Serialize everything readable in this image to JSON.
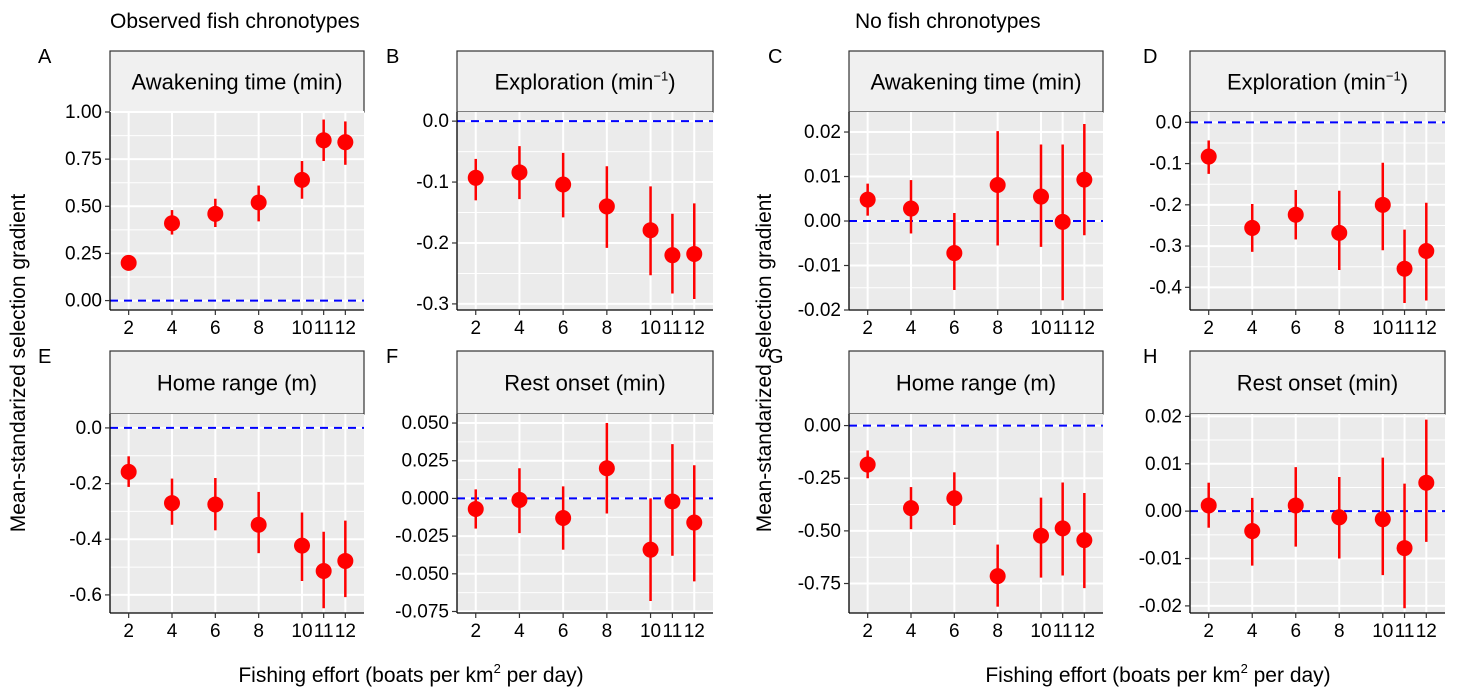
{
  "group_titles": [
    "Observed fish chronotypes",
    "No fish chronotypes"
  ],
  "ylabel": "Mean-standarized selection gradient",
  "xlabel": {
    "main": "Fishing effort (boats per km",
    "sup": "2",
    "tail": " per day)"
  },
  "colors": {
    "point": "#ff0000",
    "refline": "#0000ff",
    "panel_bg": "#ebebeb",
    "strip_bg": "#f0f0f0"
  },
  "chart_data": [
    {
      "type": "scatter",
      "panel": "A",
      "title": "Awakening time (min)",
      "xticks": [
        "2",
        "4",
        "6",
        "8",
        "10",
        "11",
        "12"
      ],
      "x": [
        2,
        4,
        6,
        8,
        10,
        11,
        12
      ],
      "y": [
        0.2,
        0.41,
        0.46,
        0.52,
        0.64,
        0.85,
        0.84
      ],
      "lo": [
        0.18,
        0.35,
        0.39,
        0.42,
        0.54,
        0.74,
        0.72
      ],
      "hi": [
        0.22,
        0.48,
        0.54,
        0.61,
        0.74,
        0.96,
        0.95
      ],
      "ylim": [
        -0.05,
        1.0
      ],
      "yticks": [
        0,
        0.25,
        0.5,
        0.75,
        1.0
      ],
      "yticklabels": [
        "0.00",
        "0.25",
        "0.50",
        "0.75",
        "1.00"
      ],
      "refline": 0
    },
    {
      "type": "scatter",
      "panel": "B",
      "title": "Exploration (min",
      "title_sup": "−1",
      "title_tail": ")",
      "xticks": [
        "2",
        "4",
        "6",
        "8",
        "10",
        "11",
        "12"
      ],
      "x": [
        2,
        4,
        6,
        8,
        10,
        11,
        12
      ],
      "y": [
        -0.093,
        -0.084,
        -0.104,
        -0.14,
        -0.179,
        -0.22,
        -0.218
      ],
      "lo": [
        -0.13,
        -0.128,
        -0.158,
        -0.208,
        -0.253,
        -0.283,
        -0.292
      ],
      "hi": [
        -0.062,
        -0.041,
        -0.052,
        -0.074,
        -0.107,
        -0.152,
        -0.135
      ],
      "ylim": [
        -0.31,
        0.015
      ],
      "yticks": [
        -0.3,
        -0.2,
        -0.1,
        0.0
      ],
      "yticklabels": [
        "-0.3",
        "-0.2",
        "-0.1",
        "0.0"
      ],
      "refline": 0
    },
    {
      "type": "scatter",
      "panel": "C",
      "title": "Awakening time (min)",
      "xticks": [
        "2",
        "4",
        "6",
        "8",
        "10",
        "11",
        "12"
      ],
      "x": [
        2,
        4,
        6,
        8,
        10,
        11,
        12
      ],
      "y": [
        0.0048,
        0.0028,
        -0.0072,
        0.0081,
        0.0055,
        -0.0002,
        0.0093
      ],
      "lo": [
        0.0012,
        -0.0028,
        -0.0155,
        -0.0055,
        -0.0058,
        -0.0178,
        -0.0032
      ],
      "hi": [
        0.0084,
        0.0092,
        0.0018,
        0.0202,
        0.0172,
        0.0172,
        0.0218
      ],
      "ylim": [
        -0.02,
        0.0245
      ],
      "yticks": [
        -0.02,
        -0.01,
        0.0,
        0.01,
        0.02
      ],
      "yticklabels": [
        "-0.02",
        "-0.01",
        "0.00",
        "0.01",
        "0.02"
      ],
      "refline": 0
    },
    {
      "type": "scatter",
      "panel": "D",
      "title": "Exploration (min",
      "title_sup": "−1",
      "title_tail": ")",
      "xticks": [
        "2",
        "4",
        "6",
        "8",
        "10",
        "11",
        "12"
      ],
      "x": [
        2,
        4,
        6,
        8,
        10,
        11,
        12
      ],
      "y": [
        -0.083,
        -0.256,
        -0.224,
        -0.268,
        -0.2,
        -0.355,
        -0.312
      ],
      "lo": [
        -0.125,
        -0.314,
        -0.284,
        -0.358,
        -0.31,
        -0.438,
        -0.432
      ],
      "hi": [
        -0.044,
        -0.198,
        -0.164,
        -0.166,
        -0.098,
        -0.26,
        -0.195
      ],
      "ylim": [
        -0.455,
        0.025
      ],
      "yticks": [
        -0.4,
        -0.3,
        -0.2,
        -0.1,
        0.0
      ],
      "yticklabels": [
        "-0.4",
        "-0.3",
        "-0.2",
        "-0.1",
        "0.0"
      ],
      "refline": 0
    },
    {
      "type": "scatter",
      "panel": "E",
      "title": "Home range (m)",
      "xticks": [
        "2",
        "4",
        "6",
        "8",
        "10",
        "11",
        "12"
      ],
      "x": [
        2,
        4,
        6,
        8,
        10,
        11,
        12
      ],
      "y": [
        -0.158,
        -0.27,
        -0.275,
        -0.348,
        -0.423,
        -0.514,
        -0.478
      ],
      "lo": [
        -0.212,
        -0.348,
        -0.368,
        -0.45,
        -0.55,
        -0.648,
        -0.608
      ],
      "hi": [
        -0.102,
        -0.182,
        -0.18,
        -0.23,
        -0.304,
        -0.373,
        -0.333
      ],
      "ylim": [
        -0.665,
        0.05
      ],
      "yticks": [
        -0.6,
        -0.4,
        -0.2,
        0.0
      ],
      "yticklabels": [
        "-0.6",
        "-0.4",
        "-0.2",
        "0.0"
      ],
      "refline": 0
    },
    {
      "type": "scatter",
      "panel": "F",
      "title": "Rest onset (min)",
      "xticks": [
        "2",
        "4",
        "6",
        "8",
        "10",
        "11",
        "12"
      ],
      "x": [
        2,
        4,
        6,
        8,
        10,
        11,
        12
      ],
      "y": [
        -0.007,
        -0.001,
        -0.013,
        0.02,
        -0.034,
        -0.002,
        -0.016
      ],
      "lo": [
        -0.02,
        -0.023,
        -0.034,
        -0.01,
        -0.068,
        -0.038,
        -0.055
      ],
      "hi": [
        0.006,
        0.02,
        0.008,
        0.05,
        0.0,
        0.036,
        0.022
      ],
      "ylim": [
        -0.076,
        0.056
      ],
      "yticks": [
        -0.075,
        -0.05,
        -0.025,
        0.0,
        0.025,
        0.05
      ],
      "yticklabels": [
        "-0.075",
        "-0.050",
        "-0.025",
        "0.000",
        "0.025",
        "0.050"
      ],
      "refline": 0
    },
    {
      "type": "scatter",
      "panel": "G",
      "title": "Home range (m)",
      "xticks": [
        "2",
        "4",
        "6",
        "8",
        "10",
        "11",
        "12"
      ],
      "x": [
        2,
        4,
        6,
        8,
        10,
        11,
        12
      ],
      "y": [
        -0.185,
        -0.392,
        -0.345,
        -0.715,
        -0.523,
        -0.488,
        -0.544
      ],
      "lo": [
        -0.25,
        -0.492,
        -0.472,
        -0.86,
        -0.722,
        -0.712,
        -0.772
      ],
      "hi": [
        -0.118,
        -0.292,
        -0.222,
        -0.565,
        -0.342,
        -0.27,
        -0.32
      ],
      "ylim": [
        -0.89,
        0.055
      ],
      "yticks": [
        -0.75,
        -0.5,
        -0.25,
        0.0
      ],
      "yticklabels": [
        "-0.75",
        "-0.50",
        "-0.25",
        "0.00"
      ],
      "refline": 0
    },
    {
      "type": "scatter",
      "panel": "H",
      "title": "Rest onset (min)",
      "xticks": [
        "2",
        "4",
        "6",
        "8",
        "10",
        "11",
        "12"
      ],
      "x": [
        2,
        4,
        6,
        8,
        10,
        11,
        12
      ],
      "y": [
        0.0012,
        -0.0042,
        0.0012,
        -0.0013,
        -0.0017,
        -0.0078,
        0.006
      ],
      "lo": [
        -0.0035,
        -0.0115,
        -0.0075,
        -0.01,
        -0.0135,
        -0.0205,
        -0.0065
      ],
      "hi": [
        0.006,
        0.0028,
        0.0093,
        0.0072,
        0.0113,
        0.0058,
        0.0193
      ],
      "ylim": [
        -0.0215,
        0.0205
      ],
      "yticks": [
        -0.02,
        -0.01,
        0.0,
        0.01,
        0.02
      ],
      "yticklabels": [
        "-0.02",
        "-0.01",
        "0.00",
        "0.01",
        "0.02"
      ],
      "refline": 0
    }
  ]
}
